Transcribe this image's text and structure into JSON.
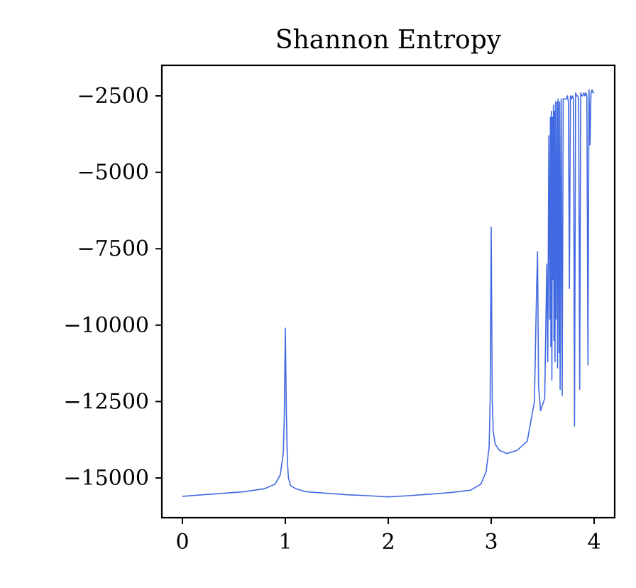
{
  "chart_data": {
    "type": "line",
    "title": "Shannon Entropy",
    "xlabel": "",
    "ylabel": "",
    "xlim": [
      -0.2,
      4.2
    ],
    "ylim": [
      -16300,
      -1500
    ],
    "x_ticks": [
      0,
      1,
      2,
      3,
      4
    ],
    "x_tick_labels": [
      "0",
      "1",
      "2",
      "3",
      "4"
    ],
    "y_ticks": [
      -2500,
      -5000,
      -7500,
      -10000,
      -12500,
      -15000
    ],
    "y_tick_labels": [
      "−2500",
      "−5000",
      "−7500",
      "−10000",
      "−12500",
      "−15000"
    ],
    "grid": false,
    "legend": "none",
    "line_color": "#4169e1",
    "series": [
      {
        "x": [
          0,
          0.2,
          0.4,
          0.6,
          0.8,
          0.9,
          0.95,
          0.98,
          0.99,
          1.0,
          1.01,
          1.02,
          1.03,
          1.05,
          1.1,
          1.2,
          1.4,
          1.6,
          1.8,
          2.0,
          2.2,
          2.4,
          2.6,
          2.8,
          2.9,
          2.95,
          2.98,
          2.99,
          3.0,
          3.01,
          3.02,
          3.04,
          3.08,
          3.15,
          3.25,
          3.35,
          3.42,
          3.44,
          3.45,
          3.46,
          3.48,
          3.5,
          3.52,
          3.54,
          3.55,
          3.56,
          3.57,
          3.575,
          3.58,
          3.585,
          3.59,
          3.595,
          3.6,
          3.605,
          3.61,
          3.615,
          3.62,
          3.625,
          3.63,
          3.64,
          3.645,
          3.65,
          3.66,
          3.665,
          3.67,
          3.68,
          3.69,
          3.7,
          3.71,
          3.72,
          3.73,
          3.74,
          3.75,
          3.76,
          3.77,
          3.78,
          3.79,
          3.8,
          3.81,
          3.82,
          3.83,
          3.84,
          3.85,
          3.86,
          3.87,
          3.88,
          3.89,
          3.9,
          3.91,
          3.92,
          3.93,
          3.94,
          3.95,
          3.96,
          3.97,
          3.98,
          3.99,
          4.0
        ],
        "y": [
          -15600,
          -15550,
          -15500,
          -15450,
          -15350,
          -15200,
          -14900,
          -14200,
          -13000,
          -10100,
          -12800,
          -14500,
          -15000,
          -15250,
          -15350,
          -15450,
          -15500,
          -15550,
          -15580,
          -15620,
          -15580,
          -15530,
          -15480,
          -15400,
          -15200,
          -14800,
          -14000,
          -12500,
          -6800,
          -12500,
          -13500,
          -13900,
          -14100,
          -14200,
          -14100,
          -13800,
          -12500,
          -9000,
          -7600,
          -12000,
          -12800,
          -12600,
          -12400,
          -8000,
          -11200,
          -3800,
          -9800,
          -3200,
          -10700,
          -3000,
          -11800,
          -3200,
          -8500,
          -2800,
          -10500,
          -3000,
          -11200,
          -2700,
          -9800,
          -2700,
          -11400,
          -2600,
          -10900,
          -2700,
          -12100,
          -2600,
          -12300,
          -2600,
          -2600,
          -2600,
          -2600,
          -2500,
          -2700,
          -8800,
          -2500,
          -2600,
          -2500,
          -2600,
          -13300,
          -2400,
          -2500,
          -2500,
          -2600,
          -12100,
          -2400,
          -2500,
          -2500,
          -2400,
          -2500,
          -2400,
          -2500,
          -11300,
          -2300,
          -4100,
          -2400,
          -2300,
          -2400,
          -2400
        ]
      }
    ]
  }
}
